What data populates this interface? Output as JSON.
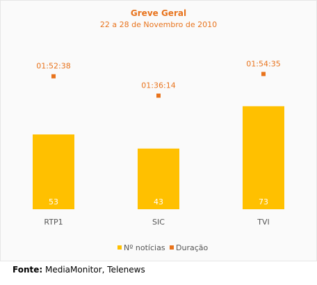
{
  "chart_data": {
    "type": "bar",
    "title": "Greve Geral",
    "subtitle": "22 a 28 de Novembro de 2010",
    "categories": [
      "RTP1",
      "SIC",
      "TVI"
    ],
    "series": [
      {
        "name": "Nº notícias",
        "type": "bar",
        "values": [
          53,
          43,
          73
        ]
      },
      {
        "name": "Duração",
        "type": "point",
        "values": [
          "01:52:38",
          "01:36:14",
          "01:54:35"
        ],
        "seconds": [
          6758,
          5774,
          6875
        ]
      }
    ],
    "colors": {
      "bar": "#ffc000",
      "point": "#e8731c",
      "title": "#e8731c",
      "background": "#fafafa"
    },
    "legend": "bottom",
    "grid": false
  },
  "footer": {
    "label": "Fonte:",
    "text": " MediaMonitor, Telenews"
  }
}
